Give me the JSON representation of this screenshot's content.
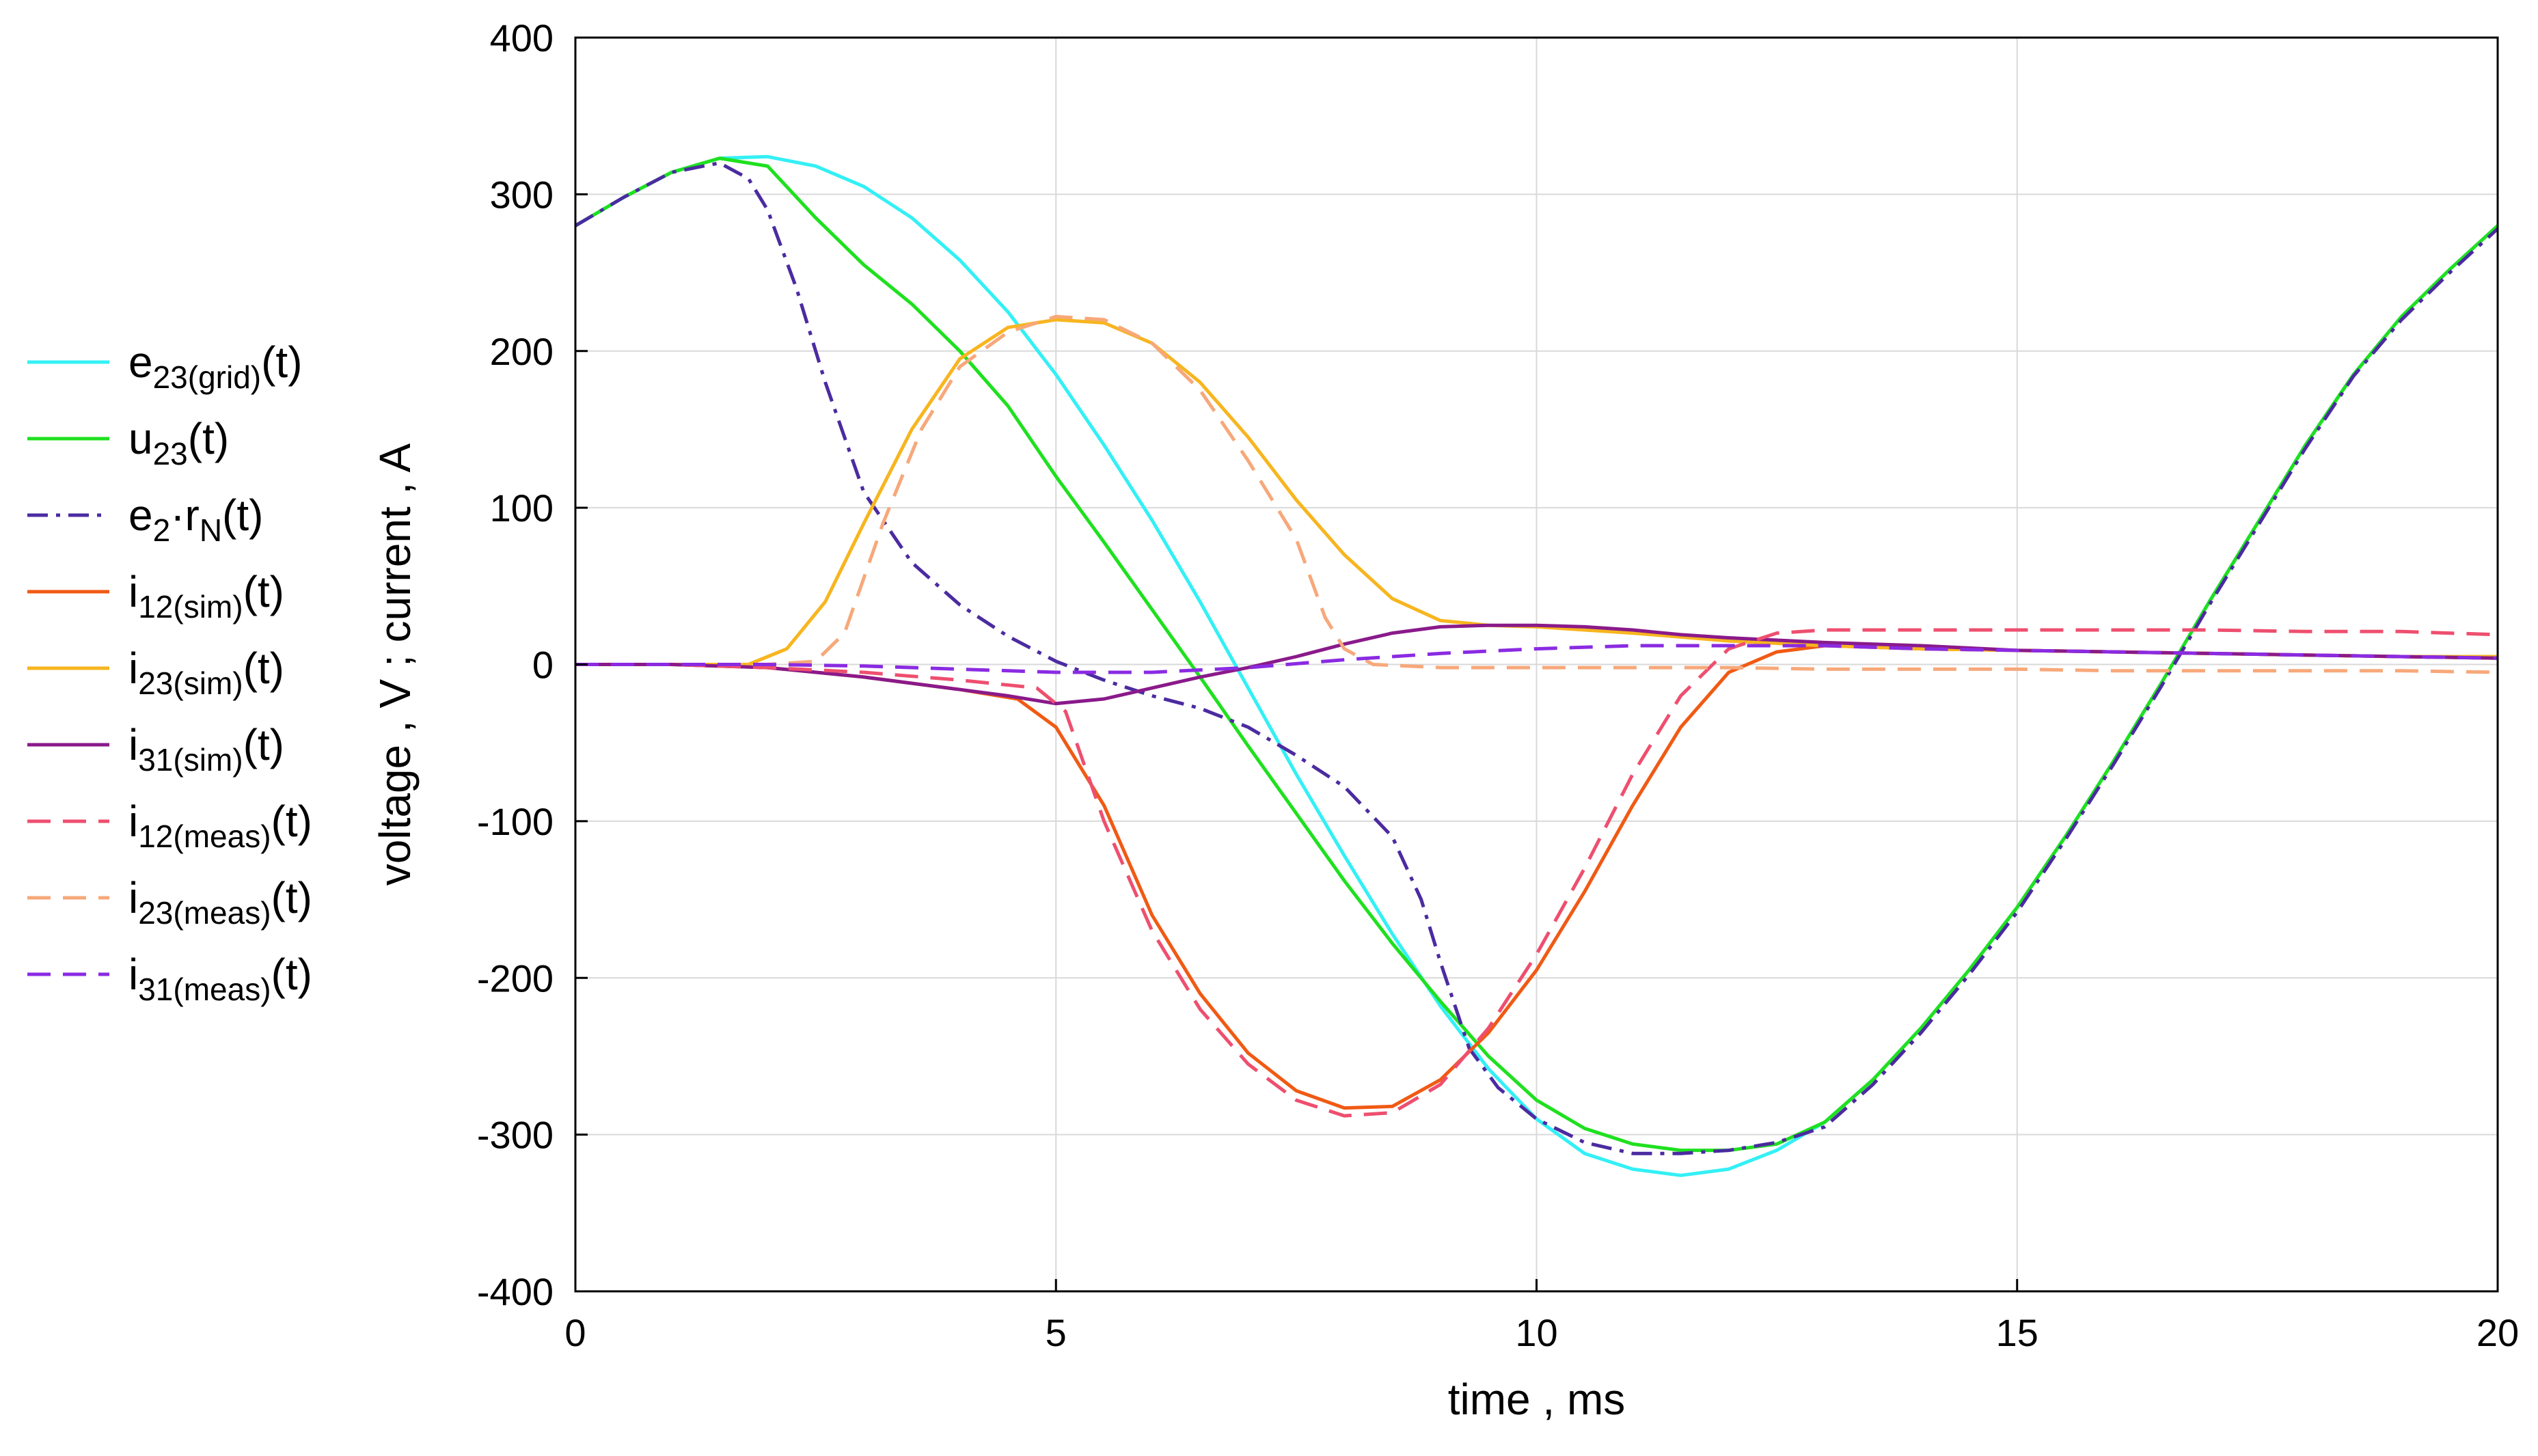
{
  "chart_data": {
    "type": "line",
    "title": "",
    "xlabel": "time , ms",
    "ylabel": "voltage , V ; current , A",
    "xlim": [
      0,
      20
    ],
    "ylim": [
      -400,
      400
    ],
    "xticks": [
      0,
      5,
      10,
      15,
      20
    ],
    "yticks": [
      400,
      300,
      200,
      100,
      0,
      -100,
      -200,
      -300,
      -400
    ],
    "grid": true,
    "legend_position": "left",
    "series": [
      {
        "name": "e23(grid)(t)",
        "label_base": "e",
        "label_sub": "23(grid)",
        "label_sup": "",
        "label_tail": "(t)",
        "color": "#33f0f5",
        "dash": "solid",
        "points": [
          [
            0,
            280
          ],
          [
            0.5,
            298
          ],
          [
            1,
            314
          ],
          [
            1.5,
            323
          ],
          [
            2,
            324
          ],
          [
            2.5,
            318
          ],
          [
            3,
            305
          ],
          [
            3.5,
            285
          ],
          [
            4,
            258
          ],
          [
            4.5,
            225
          ],
          [
            5,
            185
          ],
          [
            5.5,
            140
          ],
          [
            6,
            92
          ],
          [
            6.5,
            40
          ],
          [
            7,
            -15
          ],
          [
            7.5,
            -70
          ],
          [
            8,
            -122
          ],
          [
            8.5,
            -172
          ],
          [
            9,
            -218
          ],
          [
            9.5,
            -258
          ],
          [
            10,
            -290
          ],
          [
            10.5,
            -312
          ],
          [
            11,
            -322
          ],
          [
            11.5,
            -326
          ],
          [
            12,
            -322
          ],
          [
            12.5,
            -310
          ],
          [
            13,
            -292
          ],
          [
            13.5,
            -265
          ],
          [
            14,
            -232
          ],
          [
            14.5,
            -195
          ],
          [
            15,
            -155
          ],
          [
            15.5,
            -110
          ],
          [
            16,
            -62
          ],
          [
            16.5,
            -12
          ],
          [
            17,
            40
          ],
          [
            17.5,
            90
          ],
          [
            18,
            140
          ],
          [
            18.5,
            185
          ],
          [
            19,
            222
          ],
          [
            19.5,
            252
          ],
          [
            20,
            280
          ]
        ]
      },
      {
        "name": "u23(t)",
        "label_base": "u",
        "label_sub": "23",
        "label_sup": "",
        "label_tail": "(t)",
        "color": "#1fe01f",
        "dash": "solid",
        "points": [
          [
            0,
            280
          ],
          [
            0.5,
            298
          ],
          [
            1,
            314
          ],
          [
            1.5,
            323
          ],
          [
            2,
            318
          ],
          [
            2.5,
            285
          ],
          [
            3,
            255
          ],
          [
            3.5,
            230
          ],
          [
            4,
            200
          ],
          [
            4.5,
            165
          ],
          [
            5,
            120
          ],
          [
            5.5,
            78
          ],
          [
            6,
            35
          ],
          [
            6.5,
            -8
          ],
          [
            7,
            -52
          ],
          [
            7.5,
            -95
          ],
          [
            8,
            -138
          ],
          [
            8.5,
            -178
          ],
          [
            9,
            -215
          ],
          [
            9.5,
            -250
          ],
          [
            10,
            -278
          ],
          [
            10.5,
            -296
          ],
          [
            11,
            -306
          ],
          [
            11.5,
            -310
          ],
          [
            12,
            -310
          ],
          [
            12.5,
            -306
          ],
          [
            13,
            -292
          ],
          [
            13.5,
            -265
          ],
          [
            14,
            -232
          ],
          [
            14.5,
            -195
          ],
          [
            15,
            -155
          ],
          [
            15.5,
            -110
          ],
          [
            16,
            -62
          ],
          [
            16.5,
            -12
          ],
          [
            17,
            40
          ],
          [
            17.5,
            90
          ],
          [
            18,
            140
          ],
          [
            18.5,
            185
          ],
          [
            19,
            222
          ],
          [
            19.5,
            252
          ],
          [
            20,
            280
          ]
        ]
      },
      {
        "name": "e2·rN(t)",
        "label_base": "e",
        "label_sub": "2",
        "label_sup": "·r",
        "label_sub2": "N",
        "label_tail": "(t)",
        "color": "#4b2ba0",
        "dash": "dashdot",
        "points": [
          [
            0,
            280
          ],
          [
            0.5,
            298
          ],
          [
            1,
            314
          ],
          [
            1.5,
            320
          ],
          [
            1.8,
            310
          ],
          [
            2,
            290
          ],
          [
            2.3,
            240
          ],
          [
            2.6,
            180
          ],
          [
            3,
            110
          ],
          [
            3.5,
            65
          ],
          [
            4,
            38
          ],
          [
            4.5,
            18
          ],
          [
            5,
            2
          ],
          [
            5.5,
            -10
          ],
          [
            6,
            -20
          ],
          [
            6.5,
            -28
          ],
          [
            7,
            -40
          ],
          [
            7.5,
            -58
          ],
          [
            8,
            -78
          ],
          [
            8.5,
            -110
          ],
          [
            8.8,
            -150
          ],
          [
            9,
            -190
          ],
          [
            9.3,
            -245
          ],
          [
            9.6,
            -270
          ],
          [
            10,
            -290
          ],
          [
            10.5,
            -305
          ],
          [
            11,
            -312
          ],
          [
            11.5,
            -312
          ],
          [
            12,
            -310
          ],
          [
            12.5,
            -305
          ],
          [
            13,
            -295
          ],
          [
            13.5,
            -268
          ],
          [
            14,
            -235
          ],
          [
            14.5,
            -198
          ],
          [
            15,
            -158
          ],
          [
            15.5,
            -112
          ],
          [
            16,
            -64
          ],
          [
            16.5,
            -14
          ],
          [
            17,
            38
          ],
          [
            17.5,
            88
          ],
          [
            18,
            138
          ],
          [
            18.5,
            184
          ],
          [
            19,
            220
          ],
          [
            19.5,
            250
          ],
          [
            20,
            278
          ]
        ]
      },
      {
        "name": "i12(sim)(t)",
        "label_base": "i",
        "label_sub": "12(sim)",
        "label_sup": "",
        "label_tail": "(t)",
        "color": "#f05a14",
        "dash": "solid",
        "points": [
          [
            0,
            0
          ],
          [
            1,
            0
          ],
          [
            2,
            -2
          ],
          [
            3,
            -8
          ],
          [
            4,
            -16
          ],
          [
            4.6,
            -22
          ],
          [
            5,
            -40
          ],
          [
            5.5,
            -90
          ],
          [
            6,
            -160
          ],
          [
            6.5,
            -210
          ],
          [
            7,
            -248
          ],
          [
            7.5,
            -272
          ],
          [
            8,
            -283
          ],
          [
            8.5,
            -282
          ],
          [
            9,
            -265
          ],
          [
            9.5,
            -235
          ],
          [
            10,
            -195
          ],
          [
            10.5,
            -145
          ],
          [
            11,
            -90
          ],
          [
            11.5,
            -40
          ],
          [
            12,
            -5
          ],
          [
            12.5,
            8
          ],
          [
            13,
            12
          ],
          [
            13.5,
            11
          ],
          [
            14,
            10
          ],
          [
            15,
            9
          ],
          [
            16,
            8
          ],
          [
            17,
            7
          ],
          [
            18,
            6
          ],
          [
            19,
            5
          ],
          [
            20,
            4
          ]
        ]
      },
      {
        "name": "i23(sim)(t)",
        "label_base": "i",
        "label_sub": "23(sim)",
        "label_sup": "",
        "label_tail": "(t)",
        "color": "#f7b51f",
        "dash": "solid",
        "points": [
          [
            0,
            0
          ],
          [
            1,
            0
          ],
          [
            1.8,
            0
          ],
          [
            2.2,
            10
          ],
          [
            2.6,
            40
          ],
          [
            3,
            90
          ],
          [
            3.5,
            150
          ],
          [
            4,
            195
          ],
          [
            4.5,
            215
          ],
          [
            5,
            220
          ],
          [
            5.5,
            218
          ],
          [
            6,
            205
          ],
          [
            6.5,
            180
          ],
          [
            7,
            145
          ],
          [
            7.5,
            105
          ],
          [
            8,
            70
          ],
          [
            8.5,
            42
          ],
          [
            9,
            28
          ],
          [
            9.5,
            25
          ],
          [
            10,
            24
          ],
          [
            11,
            20
          ],
          [
            12,
            15
          ],
          [
            13,
            12
          ],
          [
            14,
            10
          ],
          [
            15,
            9
          ],
          [
            16,
            8
          ],
          [
            17,
            7
          ],
          [
            18,
            6
          ],
          [
            19,
            5
          ],
          [
            20,
            5
          ]
        ]
      },
      {
        "name": "i31(sim)(t)",
        "label_base": "i",
        "label_sub": "31(sim)",
        "label_sup": "",
        "label_tail": "(t)",
        "color": "#8a1a8a",
        "dash": "solid",
        "points": [
          [
            0,
            0
          ],
          [
            1,
            0
          ],
          [
            2,
            -2
          ],
          [
            3,
            -8
          ],
          [
            4,
            -16
          ],
          [
            4.5,
            -20
          ],
          [
            5,
            -25
          ],
          [
            5.5,
            -22
          ],
          [
            6,
            -15
          ],
          [
            6.5,
            -8
          ],
          [
            7,
            -2
          ],
          [
            7.5,
            5
          ],
          [
            8,
            13
          ],
          [
            8.5,
            20
          ],
          [
            9,
            24
          ],
          [
            9.5,
            25
          ],
          [
            10,
            25
          ],
          [
            10.5,
            24
          ],
          [
            11,
            22
          ],
          [
            11.5,
            19
          ],
          [
            12,
            17
          ],
          [
            13,
            14
          ],
          [
            14,
            12
          ],
          [
            15,
            9
          ],
          [
            16,
            8
          ],
          [
            17,
            7
          ],
          [
            18,
            6
          ],
          [
            19,
            5
          ],
          [
            20,
            4
          ]
        ]
      },
      {
        "name": "i12(meas)(t)",
        "label_base": "i",
        "label_sub": "12(meas)",
        "label_sup": "",
        "label_tail": "(t)",
        "color": "#ee4f6f",
        "dash": "dashed",
        "points": [
          [
            0,
            0
          ],
          [
            1,
            0
          ],
          [
            2,
            -2
          ],
          [
            3,
            -5
          ],
          [
            4,
            -10
          ],
          [
            4.8,
            -15
          ],
          [
            5.1,
            -30
          ],
          [
            5.5,
            -100
          ],
          [
            6,
            -170
          ],
          [
            6.5,
            -220
          ],
          [
            7,
            -255
          ],
          [
            7.5,
            -278
          ],
          [
            8,
            -288
          ],
          [
            8.5,
            -286
          ],
          [
            9,
            -268
          ],
          [
            9.5,
            -232
          ],
          [
            10,
            -185
          ],
          [
            10.5,
            -130
          ],
          [
            11,
            -70
          ],
          [
            11.5,
            -20
          ],
          [
            12,
            10
          ],
          [
            12.5,
            20
          ],
          [
            13,
            22
          ],
          [
            14,
            22
          ],
          [
            15,
            22
          ],
          [
            16,
            22
          ],
          [
            17,
            22
          ],
          [
            18,
            21
          ],
          [
            19,
            21
          ],
          [
            20,
            19
          ]
        ]
      },
      {
        "name": "i23(meas)(t)",
        "label_base": "i",
        "label_sub": "23(meas)",
        "label_sup": "",
        "label_tail": "(t)",
        "color": "#f7a87a",
        "dash": "dashed",
        "points": [
          [
            0,
            0
          ],
          [
            1,
            0
          ],
          [
            2,
            0
          ],
          [
            2.5,
            2
          ],
          [
            2.8,
            20
          ],
          [
            3.2,
            90
          ],
          [
            3.6,
            150
          ],
          [
            4,
            190
          ],
          [
            4.5,
            212
          ],
          [
            5,
            222
          ],
          [
            5.5,
            220
          ],
          [
            6,
            205
          ],
          [
            6.5,
            175
          ],
          [
            7,
            130
          ],
          [
            7.5,
            80
          ],
          [
            7.8,
            30
          ],
          [
            8,
            10
          ],
          [
            8.3,
            0
          ],
          [
            9,
            -2
          ],
          [
            10,
            -2
          ],
          [
            11,
            -2
          ],
          [
            12,
            -2
          ],
          [
            13,
            -3
          ],
          [
            14,
            -3
          ],
          [
            15,
            -3
          ],
          [
            16,
            -4
          ],
          [
            17,
            -4
          ],
          [
            18,
            -4
          ],
          [
            19,
            -4
          ],
          [
            20,
            -5
          ]
        ]
      },
      {
        "name": "i31(meas)(t)",
        "label_base": "i",
        "label_sub": "31(meas)",
        "label_sup": "",
        "label_tail": "(t)",
        "color": "#8a2be2",
        "dash": "dashed",
        "points": [
          [
            0,
            0
          ],
          [
            1,
            0
          ],
          [
            2,
            0
          ],
          [
            3,
            -1
          ],
          [
            4,
            -3
          ],
          [
            5,
            -5
          ],
          [
            6,
            -5
          ],
          [
            7,
            -2
          ],
          [
            8,
            3
          ],
          [
            9,
            7
          ],
          [
            10,
            10
          ],
          [
            11,
            12
          ],
          [
            12,
            12
          ],
          [
            13,
            12
          ],
          [
            14,
            10
          ],
          [
            15,
            9
          ],
          [
            16,
            8
          ],
          [
            17,
            7
          ],
          [
            18,
            6
          ],
          [
            19,
            5
          ],
          [
            20,
            4
          ]
        ]
      }
    ]
  }
}
